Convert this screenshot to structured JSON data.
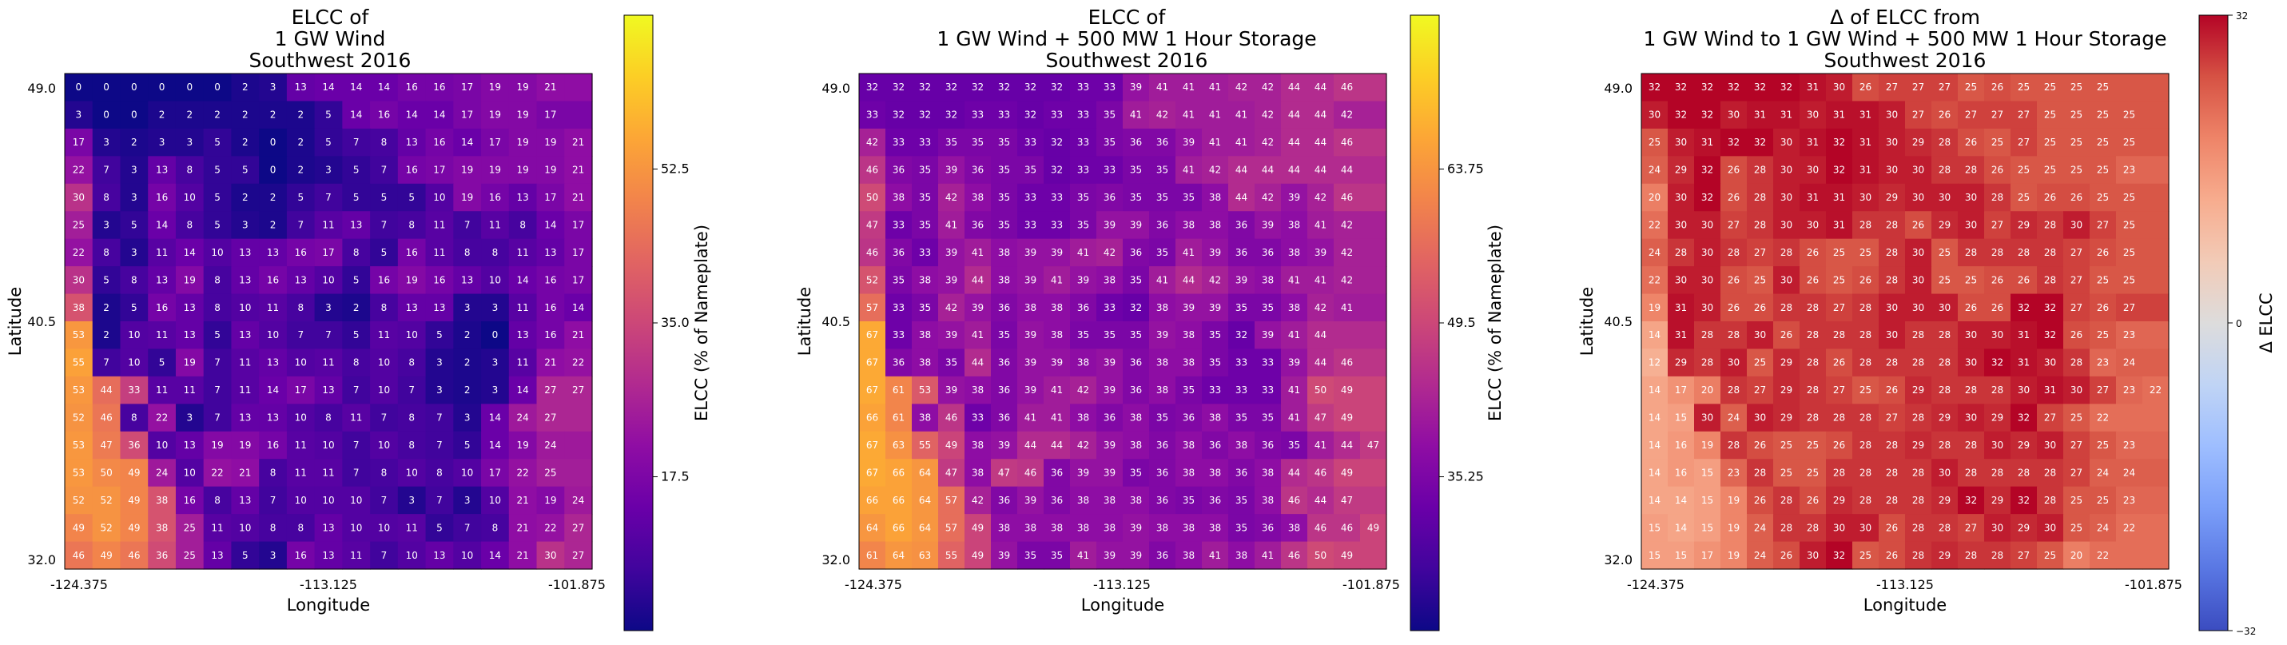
{
  "chart_data": [
    {
      "type": "heatmap",
      "title_lines": [
        "ELCC of",
        "1 GW Wind",
        "Southwest 2016"
      ],
      "xlabel": "Longitude",
      "ylabel": "Latitude",
      "x_ticks": [
        "-124.375",
        "-113.125",
        "-101.875"
      ],
      "y_ticks": [
        "49.0",
        "40.5",
        "32.0"
      ],
      "colormap": "plasma",
      "colorbar": {
        "label": "ELCC (% of Nameplate)",
        "min": 0,
        "max": 70,
        "ticks": [
          17.5,
          35.0,
          52.5
        ],
        "tick_labels": [
          "17.5",
          "35.0",
          "52.5"
        ]
      },
      "rows": [
        [
          0,
          0,
          0,
          0,
          0,
          0,
          2,
          3,
          13,
          14,
          14,
          14,
          16,
          16,
          17,
          19,
          19,
          21
        ],
        [
          3,
          0,
          0,
          2,
          2,
          2,
          2,
          2,
          2,
          5,
          14,
          16,
          14,
          14,
          17,
          19,
          19,
          17
        ],
        [
          17,
          3,
          2,
          3,
          3,
          5,
          2,
          0,
          2,
          5,
          7,
          8,
          13,
          16,
          14,
          17,
          19,
          19,
          21
        ],
        [
          22,
          7,
          3,
          13,
          8,
          5,
          5,
          0,
          2,
          3,
          5,
          7,
          16,
          17,
          19,
          19,
          19,
          19,
          21
        ],
        [
          30,
          8,
          3,
          16,
          10,
          5,
          2,
          2,
          5,
          7,
          5,
          5,
          5,
          10,
          19,
          16,
          13,
          17,
          21
        ],
        [
          25,
          3,
          5,
          14,
          8,
          5,
          3,
          2,
          7,
          11,
          13,
          7,
          8,
          11,
          7,
          11,
          8,
          14,
          17
        ],
        [
          22,
          8,
          3,
          11,
          14,
          10,
          13,
          13,
          16,
          17,
          8,
          5,
          16,
          11,
          8,
          8,
          11,
          13,
          17
        ],
        [
          30,
          5,
          8,
          13,
          19,
          8,
          13,
          16,
          13,
          10,
          5,
          16,
          19,
          16,
          13,
          10,
          14,
          16,
          17
        ],
        [
          38,
          2,
          5,
          16,
          13,
          8,
          10,
          11,
          8,
          3,
          2,
          8,
          13,
          13,
          3,
          3,
          11,
          16,
          14
        ],
        [
          53,
          2,
          10,
          11,
          13,
          5,
          13,
          10,
          7,
          7,
          5,
          11,
          10,
          5,
          2,
          0,
          13,
          16,
          21
        ],
        [
          55,
          7,
          10,
          5,
          19,
          7,
          11,
          13,
          10,
          11,
          8,
          10,
          8,
          3,
          2,
          3,
          11,
          21,
          22
        ],
        [
          53,
          44,
          33,
          11,
          11,
          7,
          11,
          14,
          17,
          13,
          7,
          10,
          7,
          3,
          2,
          3,
          14,
          27,
          27
        ],
        [
          52,
          46,
          8,
          22,
          3,
          7,
          13,
          13,
          10,
          8,
          11,
          7,
          8,
          7,
          3,
          14,
          24,
          27
        ],
        [
          53,
          47,
          36,
          10,
          13,
          19,
          19,
          16,
          11,
          10,
          7,
          10,
          8,
          7,
          5,
          14,
          19,
          24
        ],
        [
          53,
          50,
          49,
          24,
          10,
          22,
          21,
          8,
          11,
          11,
          7,
          8,
          10,
          8,
          10,
          17,
          22,
          25
        ],
        [
          52,
          52,
          49,
          38,
          16,
          8,
          13,
          7,
          10,
          10,
          10,
          7,
          3,
          7,
          3,
          10,
          21,
          19,
          24
        ],
        [
          49,
          52,
          49,
          38,
          25,
          11,
          10,
          8,
          8,
          13,
          10,
          10,
          11,
          5,
          7,
          8,
          21,
          22,
          27
        ],
        [
          46,
          49,
          46,
          36,
          25,
          13,
          5,
          3,
          16,
          13,
          11,
          7,
          10,
          13,
          10,
          14,
          21,
          30,
          27
        ]
      ]
    },
    {
      "type": "heatmap",
      "title_lines": [
        "ELCC of",
        "1 GW Wind + 500 MW 1 Hour Storage",
        "Southwest 2016"
      ],
      "xlabel": "Longitude",
      "ylabel": "Latitude",
      "x_ticks": [
        "-124.375",
        "-113.125",
        "-101.875"
      ],
      "y_ticks": [
        "49.0",
        "40.5",
        "32.0"
      ],
      "colormap": "plasma",
      "colorbar": {
        "label": "ELCC (% of Nameplate)",
        "min": 21,
        "max": 78,
        "ticks": [
          35.25,
          49.5,
          63.75
        ],
        "tick_labels": [
          "35.25",
          "49.5",
          "63.75"
        ]
      },
      "rows": [
        [
          32,
          32,
          32,
          32,
          32,
          32,
          32,
          32,
          33,
          33,
          39,
          41,
          41,
          41,
          42,
          42,
          44,
          44,
          46
        ],
        [
          33,
          32,
          32,
          32,
          33,
          33,
          32,
          33,
          33,
          35,
          41,
          42,
          41,
          41,
          41,
          42,
          44,
          44,
          42
        ],
        [
          42,
          33,
          33,
          35,
          35,
          35,
          33,
          32,
          33,
          35,
          36,
          36,
          39,
          41,
          41,
          42,
          44,
          44,
          46
        ],
        [
          46,
          36,
          35,
          39,
          36,
          35,
          35,
          32,
          33,
          33,
          35,
          35,
          41,
          42,
          44,
          44,
          44,
          44,
          44
        ],
        [
          50,
          38,
          35,
          42,
          38,
          35,
          33,
          33,
          35,
          36,
          35,
          35,
          35,
          38,
          44,
          42,
          39,
          42,
          46
        ],
        [
          47,
          33,
          35,
          41,
          36,
          35,
          33,
          33,
          35,
          39,
          39,
          36,
          38,
          38,
          36,
          39,
          38,
          41,
          42
        ],
        [
          46,
          36,
          33,
          39,
          41,
          38,
          39,
          39,
          41,
          42,
          36,
          35,
          41,
          39,
          36,
          36,
          38,
          39,
          42
        ],
        [
          52,
          35,
          38,
          39,
          44,
          38,
          39,
          41,
          39,
          38,
          35,
          41,
          44,
          42,
          39,
          38,
          41,
          41,
          42
        ],
        [
          57,
          33,
          35,
          42,
          39,
          36,
          38,
          38,
          36,
          33,
          32,
          38,
          39,
          39,
          35,
          35,
          38,
          42,
          41
        ],
        [
          67,
          33,
          38,
          39,
          41,
          35,
          39,
          38,
          35,
          35,
          35,
          39,
          38,
          35,
          32,
          39,
          41,
          44
        ],
        [
          67,
          36,
          38,
          35,
          44,
          36,
          39,
          39,
          38,
          39,
          36,
          38,
          38,
          35,
          33,
          33,
          39,
          44,
          46
        ],
        [
          67,
          61,
          53,
          39,
          38,
          36,
          39,
          41,
          42,
          39,
          36,
          38,
          35,
          33,
          33,
          33,
          41,
          50,
          49
        ],
        [
          66,
          61,
          38,
          46,
          33,
          36,
          41,
          41,
          38,
          36,
          38,
          35,
          36,
          38,
          35,
          35,
          41,
          47,
          49
        ],
        [
          67,
          63,
          55,
          49,
          38,
          39,
          44,
          44,
          42,
          39,
          38,
          36,
          38,
          36,
          38,
          36,
          35,
          41,
          44,
          47
        ],
        [
          67,
          66,
          64,
          47,
          38,
          47,
          46,
          36,
          39,
          39,
          35,
          36,
          38,
          38,
          36,
          38,
          44,
          46,
          49
        ],
        [
          66,
          66,
          64,
          57,
          42,
          36,
          39,
          36,
          38,
          38,
          38,
          36,
          35,
          36,
          35,
          38,
          46,
          44,
          47
        ],
        [
          64,
          66,
          64,
          57,
          49,
          38,
          38,
          38,
          38,
          38,
          39,
          38,
          38,
          38,
          35,
          36,
          38,
          46,
          46,
          49
        ],
        [
          61,
          64,
          63,
          55,
          49,
          39,
          35,
          35,
          41,
          39,
          39,
          36,
          38,
          41,
          38,
          41,
          46,
          50,
          49
        ]
      ]
    },
    {
      "type": "heatmap",
      "title_lines": [
        "Δ of ELCC from",
        "1 GW Wind to 1 GW Wind + 500 MW 1 Hour Storage",
        "Southwest 2016"
      ],
      "xlabel": "Longitude",
      "ylabel": "Latitude",
      "x_ticks": [
        "-124.375",
        "-113.125",
        "-101.875"
      ],
      "y_ticks": [
        "49.0",
        "40.5",
        "32.0"
      ],
      "colormap": "coolwarm",
      "colorbar": {
        "label": "Δ ELCC",
        "min": -32,
        "max": 32,
        "ticks": [
          32,
          0,
          -32
        ],
        "tick_labels": [
          "32",
          "0",
          "−32"
        ]
      },
      "rows": [
        [
          32,
          32,
          32,
          32,
          32,
          32,
          31,
          30,
          26,
          27,
          27,
          27,
          25,
          26,
          25,
          25,
          25,
          25
        ],
        [
          30,
          32,
          32,
          30,
          31,
          31,
          30,
          31,
          31,
          30,
          27,
          26,
          27,
          27,
          27,
          25,
          25,
          25,
          25
        ],
        [
          25,
          30,
          31,
          32,
          32,
          30,
          31,
          32,
          31,
          30,
          29,
          28,
          26,
          25,
          27,
          25,
          25,
          25,
          25
        ],
        [
          24,
          29,
          32,
          26,
          28,
          30,
          30,
          32,
          31,
          30,
          30,
          28,
          28,
          26,
          25,
          25,
          25,
          25,
          23
        ],
        [
          20,
          30,
          32,
          26,
          28,
          30,
          31,
          31,
          30,
          29,
          30,
          30,
          30,
          28,
          25,
          26,
          26,
          25,
          25
        ],
        [
          22,
          30,
          30,
          27,
          28,
          30,
          30,
          31,
          28,
          28,
          26,
          29,
          30,
          27,
          29,
          28,
          30,
          27,
          25
        ],
        [
          24,
          28,
          30,
          28,
          27,
          28,
          26,
          25,
          25,
          28,
          30,
          25,
          28,
          28,
          28,
          28,
          27,
          26,
          25
        ],
        [
          22,
          30,
          30,
          26,
          25,
          30,
          26,
          25,
          26,
          28,
          30,
          25,
          25,
          26,
          26,
          28,
          27,
          25,
          25
        ],
        [
          19,
          31,
          30,
          26,
          26,
          28,
          28,
          27,
          28,
          30,
          30,
          30,
          26,
          26,
          32,
          32,
          27,
          26,
          27
        ],
        [
          14,
          31,
          28,
          28,
          30,
          26,
          28,
          28,
          28,
          30,
          28,
          28,
          30,
          30,
          31,
          32,
          26,
          25,
          23
        ],
        [
          12,
          29,
          28,
          30,
          25,
          29,
          28,
          26,
          28,
          28,
          28,
          28,
          30,
          32,
          31,
          30,
          28,
          23,
          24
        ],
        [
          14,
          17,
          20,
          28,
          27,
          29,
          28,
          27,
          25,
          26,
          29,
          28,
          28,
          28,
          30,
          31,
          30,
          27,
          23,
          22
        ],
        [
          14,
          15,
          30,
          24,
          30,
          29,
          28,
          28,
          28,
          27,
          28,
          29,
          30,
          29,
          32,
          27,
          25,
          22
        ],
        [
          14,
          16,
          19,
          28,
          26,
          25,
          25,
          26,
          28,
          28,
          29,
          28,
          28,
          30,
          29,
          30,
          27,
          25,
          23
        ],
        [
          14,
          16,
          15,
          23,
          28,
          25,
          25,
          28,
          28,
          28,
          28,
          30,
          28,
          28,
          28,
          28,
          27,
          24,
          24
        ],
        [
          14,
          14,
          15,
          19,
          26,
          28,
          26,
          29,
          28,
          28,
          28,
          29,
          32,
          29,
          32,
          28,
          25,
          25,
          23
        ],
        [
          15,
          14,
          15,
          19,
          24,
          28,
          28,
          30,
          30,
          26,
          28,
          28,
          27,
          30,
          29,
          30,
          25,
          24,
          22
        ],
        [
          15,
          15,
          17,
          19,
          24,
          26,
          30,
          32,
          25,
          26,
          28,
          29,
          28,
          28,
          27,
          25,
          20,
          22
        ]
      ]
    }
  ]
}
